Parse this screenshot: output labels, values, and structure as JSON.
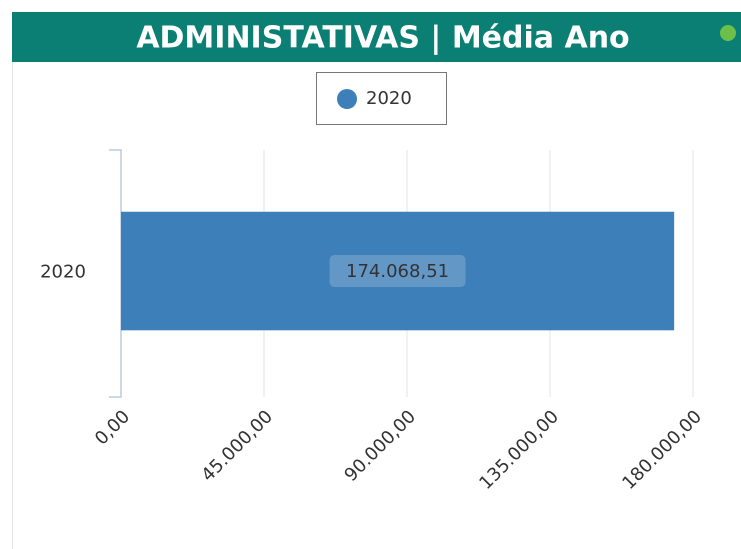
{
  "chart_data": {
    "type": "bar",
    "orientation": "horizontal",
    "title": "ADMINISTATIVAS | Média Ano",
    "categories": [
      "2020"
    ],
    "series": [
      {
        "name": "2020",
        "color": "#3d7fb8",
        "values": [
          174068.51
        ],
        "value_labels": [
          "174.068,51"
        ]
      }
    ],
    "xlim": [
      0,
      180000
    ],
    "xticks": [
      {
        "value": 0,
        "label": "0,00"
      },
      {
        "value": 45000,
        "label": "45.000,00"
      },
      {
        "value": 90000,
        "label": "90.000,00"
      },
      {
        "value": 135000,
        "label": "135.000,00"
      },
      {
        "value": 180000,
        "label": "180.000,00"
      }
    ],
    "grid": true,
    "legend": "top"
  }
}
